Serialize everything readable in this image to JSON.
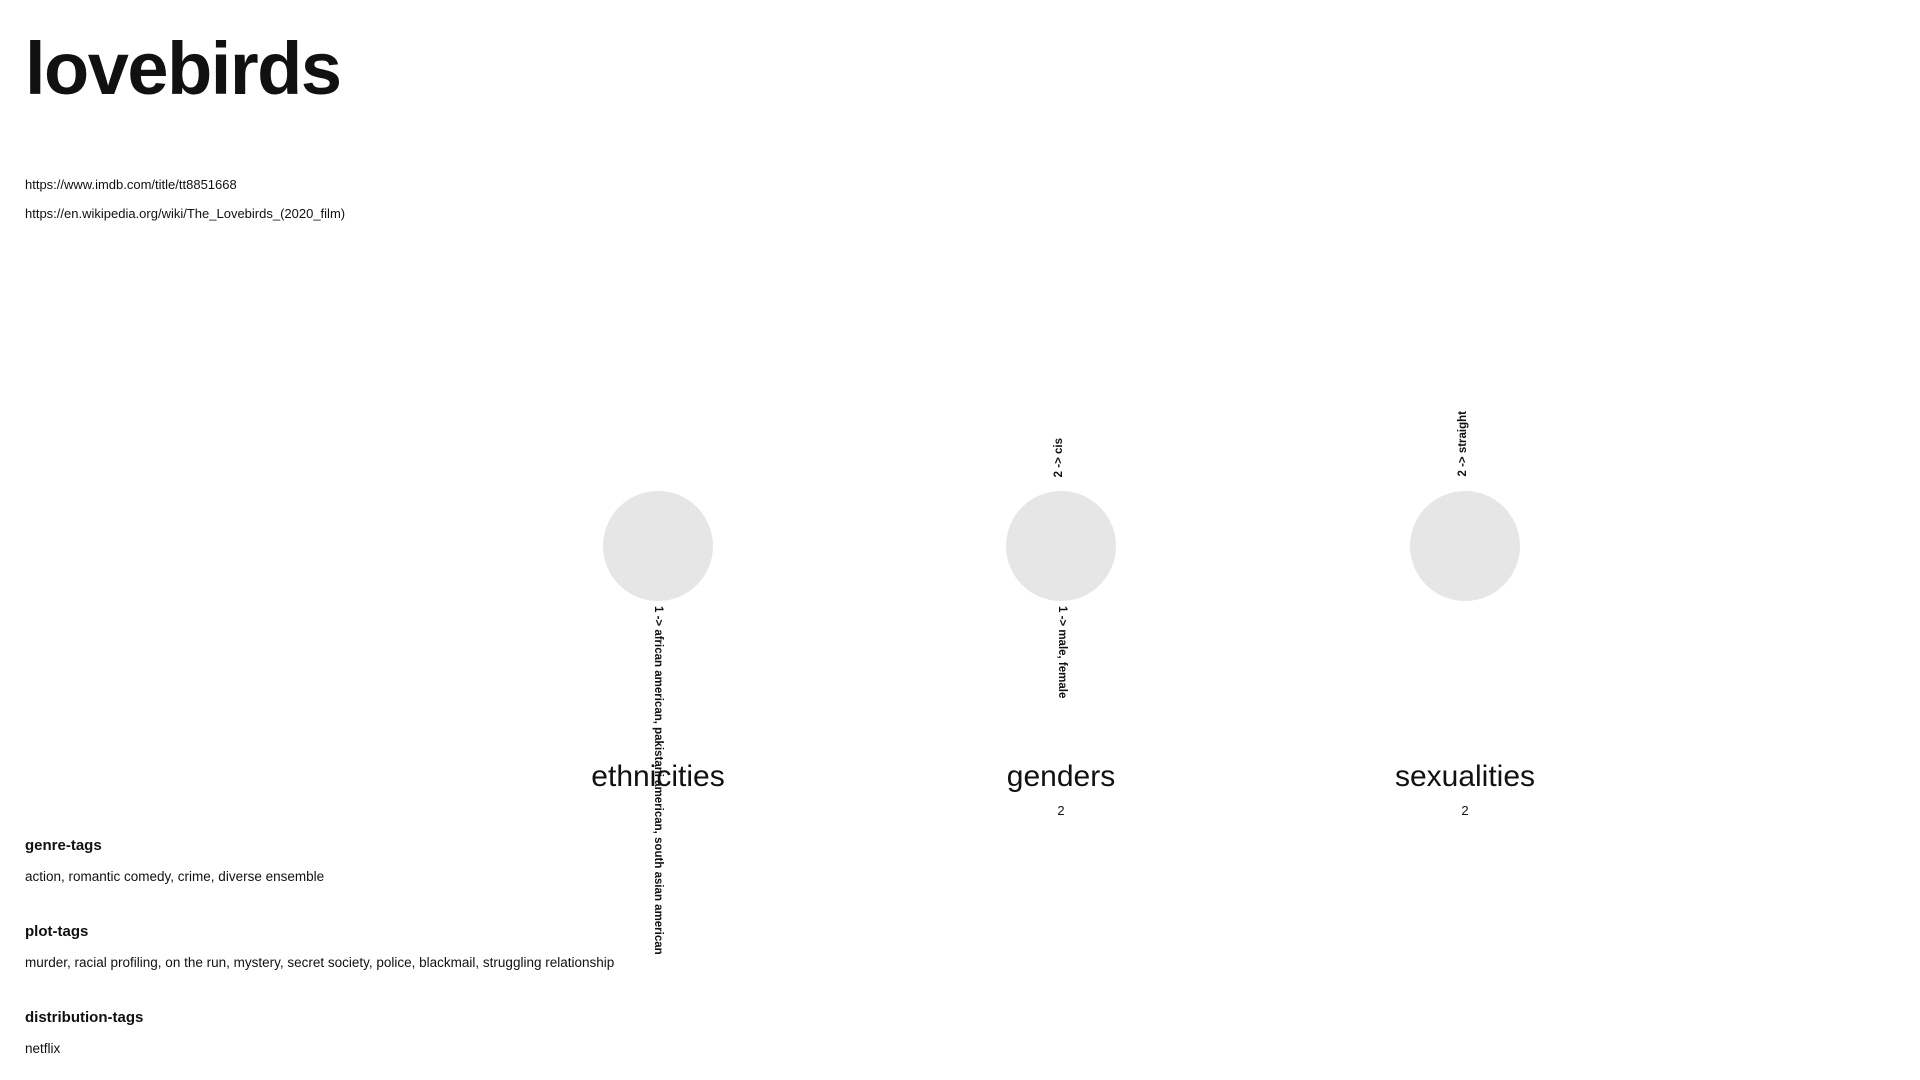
{
  "title": "lovebirds",
  "links": [
    "https://www.imdb.com/title/tt8851668",
    "https://en.wikipedia.org/wiki/The_Lovebirds_(2020_film)"
  ],
  "categories": {
    "ethnicities": {
      "label": "ethnicities",
      "count": "",
      "below": "1 ->  african american, pakistani american, south asian american",
      "above": ""
    },
    "genders": {
      "label": "genders",
      "count": "2",
      "below": "1 ->  male, female",
      "above": "2 ->  cis"
    },
    "sexualities": {
      "label": "sexualities",
      "count": "2",
      "below": "",
      "above": "2 ->  straight"
    }
  },
  "tags": {
    "genre": {
      "heading": "genre-tags",
      "values": "action, romantic comedy, crime, diverse ensemble"
    },
    "plot": {
      "heading": "plot-tags",
      "values": "murder, racial profiling, on the run, mystery, secret society, police, blackmail, struggling relationship"
    },
    "distribution": {
      "heading": "distribution-tags",
      "values": "netflix"
    }
  },
  "colors": {
    "node_fill": "#e6e6e6",
    "text": "#111111",
    "background": "#ffffff"
  }
}
